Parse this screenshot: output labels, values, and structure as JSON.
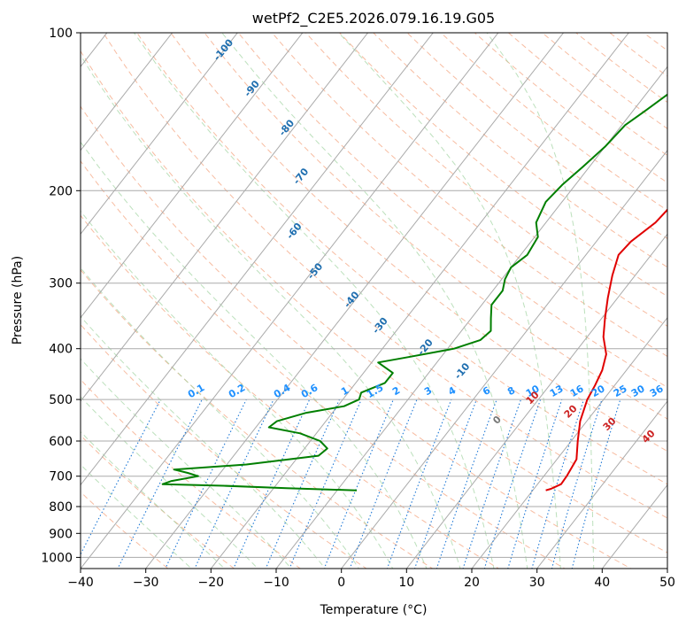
{
  "chart_data": {
    "type": "line",
    "title": "wetPf2_C2E5.2026.079.16.19.G05",
    "xlabel": "Temperature (°C)",
    "ylabel": "Pressure (hPa)",
    "xlim": [
      -40,
      50
    ],
    "ylim": [
      1050,
      100
    ],
    "y_scale": "log",
    "grid": true,
    "x_ticks": [
      -40,
      -30,
      -20,
      -10,
      0,
      10,
      20,
      30,
      40,
      50
    ],
    "y_ticks": [
      1000,
      900,
      800,
      700,
      600,
      500,
      400,
      300,
      200,
      100
    ],
    "series": [
      {
        "color": "#e00000",
        "points": [
          {
            "p": 745,
            "t": 22.0
          },
          {
            "p": 740,
            "t": 22.6
          },
          {
            "p": 725,
            "t": 23.6
          },
          {
            "p": 700,
            "t": 23.5
          },
          {
            "p": 650,
            "t": 23.0
          },
          {
            "p": 600,
            "t": 21.0
          },
          {
            "p": 550,
            "t": 19.0
          },
          {
            "p": 500,
            "t": 17.5
          },
          {
            "p": 470,
            "t": 17.0
          },
          {
            "p": 440,
            "t": 16.3
          },
          {
            "p": 410,
            "t": 15.0
          },
          {
            "p": 380,
            "t": 12.5
          },
          {
            "p": 350,
            "t": 10.5
          },
          {
            "p": 320,
            "t": 8.5
          },
          {
            "p": 290,
            "t": 6.5
          },
          {
            "p": 265,
            "t": 5.0
          },
          {
            "p": 250,
            "t": 5.3
          },
          {
            "p": 230,
            "t": 6.8
          },
          {
            "p": 210,
            "t": 7.3
          },
          {
            "p": 190,
            "t": 7.2
          },
          {
            "p": 170,
            "t": 7.0
          },
          {
            "p": 155,
            "t": 6.2
          },
          {
            "p": 140,
            "t": 5.5
          },
          {
            "p": 125,
            "t": 5.8
          },
          {
            "p": 110,
            "t": 6.0
          },
          {
            "p": 100,
            "t": 5.5
          }
        ]
      },
      {
        "color": "#007f00",
        "points": [
          {
            "p": 745,
            "t": -7.0
          },
          {
            "p": 738,
            "t": -18.0
          },
          {
            "p": 730,
            "t": -28.0
          },
          {
            "p": 725,
            "t": -37.5
          },
          {
            "p": 715,
            "t": -36.5
          },
          {
            "p": 700,
            "t": -33.0
          },
          {
            "p": 690,
            "t": -35.0
          },
          {
            "p": 680,
            "t": -37.5
          },
          {
            "p": 665,
            "t": -27.0
          },
          {
            "p": 640,
            "t": -17.0
          },
          {
            "p": 620,
            "t": -16.5
          },
          {
            "p": 600,
            "t": -18.5
          },
          {
            "p": 580,
            "t": -22.5
          },
          {
            "p": 565,
            "t": -28.0
          },
          {
            "p": 550,
            "t": -27.5
          },
          {
            "p": 530,
            "t": -24.0
          },
          {
            "p": 515,
            "t": -19.0
          },
          {
            "p": 500,
            "t": -17.5
          },
          {
            "p": 485,
            "t": -18.0
          },
          {
            "p": 465,
            "t": -15.5
          },
          {
            "p": 445,
            "t": -15.5
          },
          {
            "p": 425,
            "t": -19.0
          },
          {
            "p": 415,
            "t": -15.0
          },
          {
            "p": 400,
            "t": -9.0
          },
          {
            "p": 385,
            "t": -6.0
          },
          {
            "p": 370,
            "t": -5.5
          },
          {
            "p": 350,
            "t": -7.0
          },
          {
            "p": 330,
            "t": -8.5
          },
          {
            "p": 310,
            "t": -8.5
          },
          {
            "p": 295,
            "t": -9.5
          },
          {
            "p": 280,
            "t": -10.0
          },
          {
            "p": 265,
            "t": -9.0
          },
          {
            "p": 245,
            "t": -9.5
          },
          {
            "p": 230,
            "t": -11.5
          },
          {
            "p": 210,
            "t": -12.5
          },
          {
            "p": 195,
            "t": -12.0
          },
          {
            "p": 180,
            "t": -11.0
          },
          {
            "p": 165,
            "t": -10.0
          },
          {
            "p": 150,
            "t": -9.5
          },
          {
            "p": 140,
            "t": -8.0
          },
          {
            "p": 130,
            "t": -6.5
          },
          {
            "p": 120,
            "t": -5.5
          },
          {
            "p": 110,
            "t": -4.5
          },
          {
            "p": 100,
            "t": -3.0
          }
        ]
      }
    ],
    "annotations": {
      "dry_adiabat_labels": [
        -100,
        -90,
        -80,
        -70,
        -60,
        -50,
        -40,
        -30,
        -20,
        -10
      ],
      "mixing_ratio_labels": [
        0.1,
        0.2,
        0.4,
        0.6,
        1,
        1.5,
        2,
        3,
        4,
        6,
        8,
        10,
        13,
        16,
        20,
        25,
        30,
        36
      ],
      "moist_adiabat_labels": [
        0,
        10,
        20,
        30,
        40
      ],
      "dry_adiabat_label_color": "#1f6fb0",
      "mixing_ratio_label_color": "#1e90ff",
      "moist_adiabat_label_color": "#cc2222",
      "zero_label_color": "#777777"
    }
  }
}
